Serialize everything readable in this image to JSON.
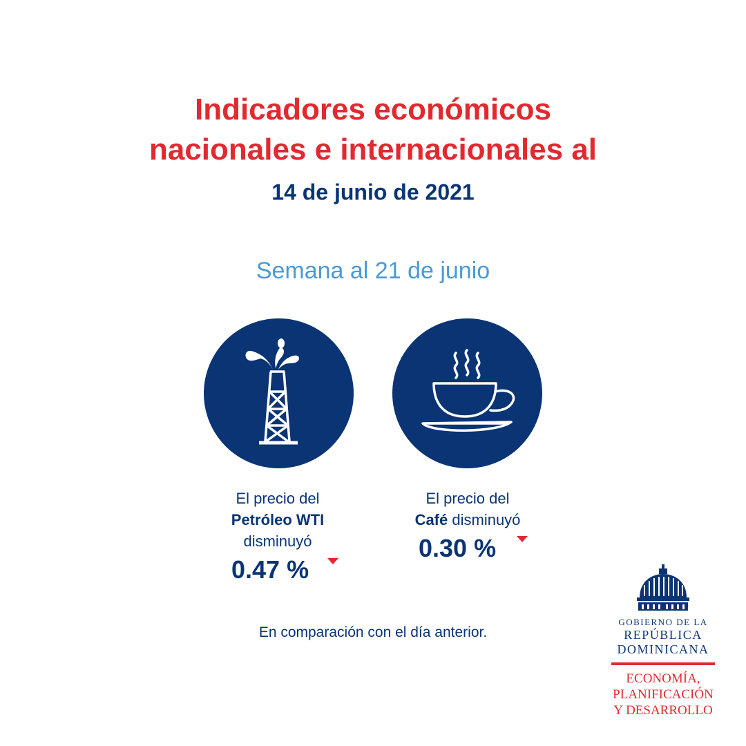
{
  "header": {
    "title_line1": "Indicadores económicos",
    "title_line2": "nacionales e internacionales al",
    "date": "14 de junio de 2021"
  },
  "period": "Semana al 21 de junio",
  "indicators": [
    {
      "icon": "oil-derrick-icon",
      "line1": "El precio del",
      "name": "Petróleo WTI",
      "change_text": "disminuyó",
      "value": "0.47 %",
      "direction": "down"
    },
    {
      "icon": "coffee-cup-icon",
      "line1": "El precio del",
      "name": "Café",
      "change_text": "disminuyó",
      "value": "0.30 %",
      "direction": "down"
    }
  ],
  "note": "En comparación con el día anterior.",
  "logo": {
    "line1": "GOBIERNO DE LA",
    "line2": "REPÚBLICA",
    "line3": "DOMINICANA",
    "ministry1": "ECONOMÍA,",
    "ministry2": "PLANIFICACIÓN",
    "ministry3": "Y DESARROLLO"
  },
  "colors": {
    "accent_red": "#e02a30",
    "navy": "#0a3474",
    "light_blue": "#4a9ad6"
  }
}
